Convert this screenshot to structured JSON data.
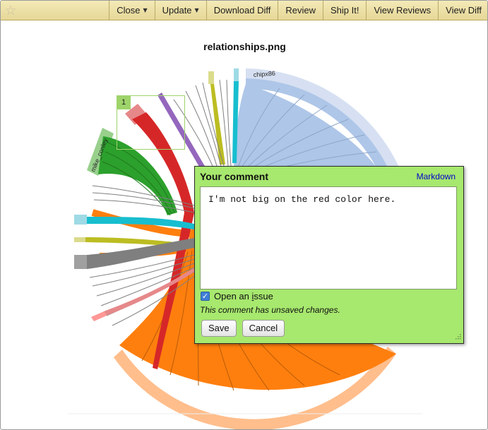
{
  "toolbar": {
    "star_icon": "star-icon",
    "buttons": [
      {
        "label": "Close",
        "has_dropdown": true
      },
      {
        "label": "Update",
        "has_dropdown": true
      },
      {
        "label": "Download Diff"
      },
      {
        "label": "Review"
      },
      {
        "label": "Ship It!"
      },
      {
        "label": "View Reviews"
      },
      {
        "label": "View Diff"
      }
    ]
  },
  "image": {
    "title": "relationships.png",
    "labels": {
      "chipx86": "chipx86",
      "mike_conley": "mike_conley"
    }
  },
  "region": {
    "number": "1"
  },
  "comment": {
    "title": "Your comment",
    "markdown_link": "Markdown",
    "text": "I'm not big on the red color here.",
    "open_issue_label": "Open an issue",
    "open_issue_checked": true,
    "unsaved_notice": "This comment has unsaved changes.",
    "save_label": "Save",
    "cancel_label": "Cancel"
  },
  "colors": {
    "toolbar_bg": "#efe3a9",
    "comment_bg": "#a7e86e",
    "region_border": "#9ed36a",
    "link": "#0000cc"
  }
}
